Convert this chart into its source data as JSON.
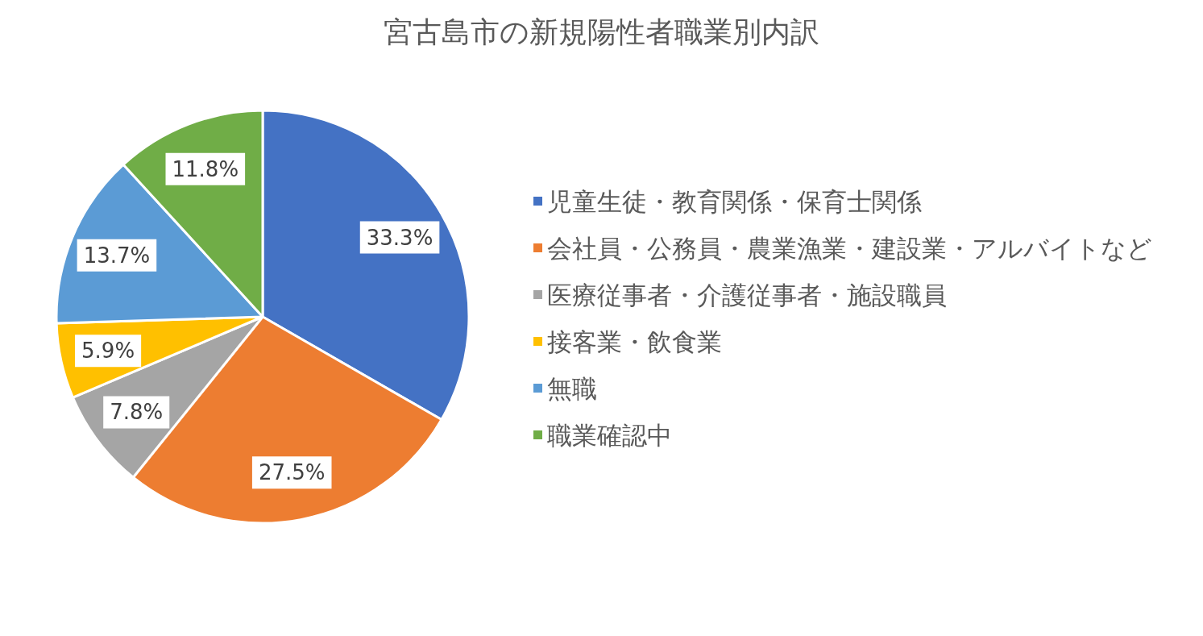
{
  "chart_data": {
    "type": "pie",
    "title": "宮古島市の新規陽性者職業別内訳",
    "categories": [
      "児童生徒・教育関係・保育士関係",
      "会社員・公務員・農業漁業・建設業・アルバイトなど",
      "医療従事者・介護従事者・施設職員",
      "接客業・飲食業",
      "無職",
      "職業確認中"
    ],
    "values": [
      33.3,
      27.5,
      7.8,
      5.9,
      13.7,
      11.8
    ],
    "colors": [
      "#4472c4",
      "#ed7d31",
      "#a5a5a5",
      "#ffc000",
      "#5b9bd5",
      "#70ad47"
    ],
    "value_labels": [
      "33.3%",
      "27.5%",
      "7.8%",
      "5.9%",
      "13.7%",
      "11.8%"
    ],
    "legend": "right"
  }
}
